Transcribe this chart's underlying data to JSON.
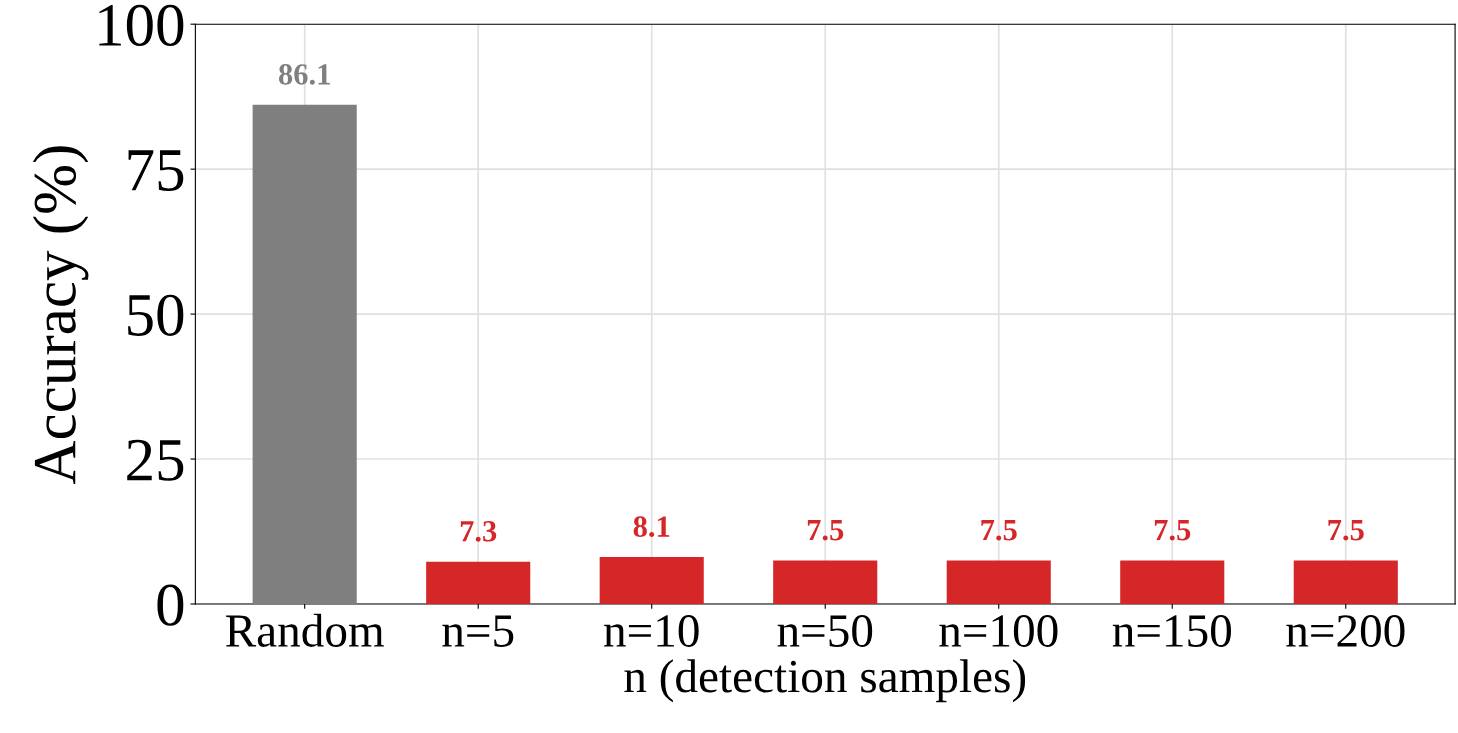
{
  "chart_data": {
    "type": "bar",
    "xlabel": "n (detection samples)",
    "ylabel": "Accuracy (%)",
    "categories": [
      "Random",
      "n=5",
      "n=10",
      "n=50",
      "n=100",
      "n=150",
      "n=200"
    ],
    "values": [
      86.1,
      7.3,
      8.1,
      7.5,
      7.5,
      7.5,
      7.5
    ],
    "colors": [
      "#7f7f7f",
      "#d62728",
      "#d62728",
      "#d62728",
      "#d62728",
      "#d62728",
      "#d62728"
    ],
    "ylim": [
      0,
      100
    ],
    "yticks": [
      0,
      25,
      50,
      75,
      100
    ],
    "grid": true,
    "data_labels": true
  }
}
